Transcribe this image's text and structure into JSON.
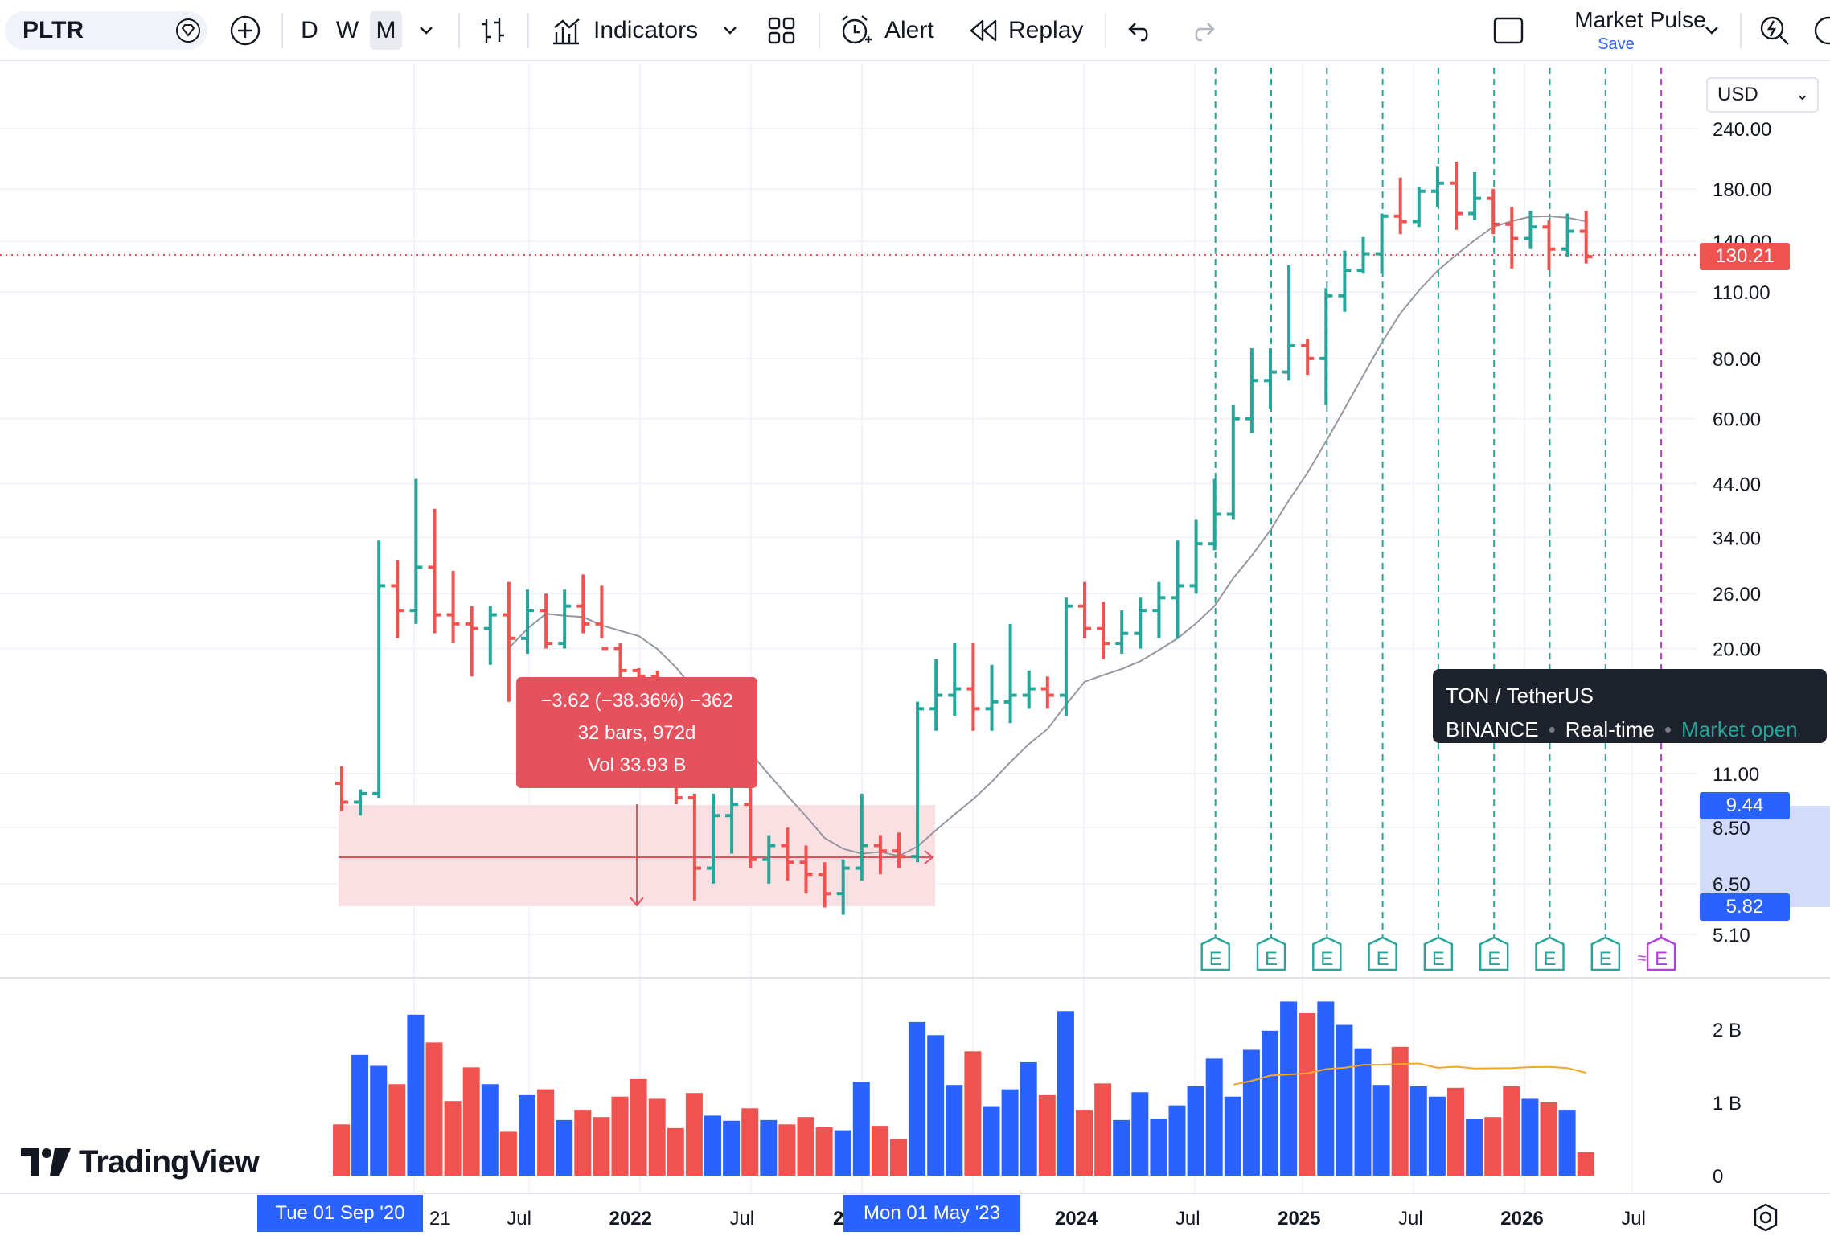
{
  "toolbar": {
    "symbol": "PLTR",
    "intervals": [
      "D",
      "W",
      "M"
    ],
    "active_interval": "M",
    "indicators_label": "Indicators",
    "alert_label": "Alert",
    "replay_label": "Replay",
    "layout_name": "Market Pulse",
    "save_label": "Save"
  },
  "currency": "USD",
  "price_axis": {
    "labels": [
      "240.00",
      "180.00",
      "140.00",
      "110.00",
      "80.00",
      "60.00",
      "44.00",
      "34.00",
      "26.00",
      "20.00",
      "11.00",
      "8.50",
      "6.50",
      "5.10"
    ],
    "current_price": "130.21",
    "range_high": "9.44",
    "range_low": "5.82"
  },
  "volume_axis": {
    "labels": [
      "2 B",
      "1 B",
      "0"
    ]
  },
  "time_axis": {
    "labels": [
      {
        "text": "Jul",
        "year": false
      },
      {
        "text": "2022",
        "year": true
      },
      {
        "text": "Jul",
        "year": false
      },
      {
        "text": "2024",
        "year": true
      },
      {
        "text": "Jul",
        "year": false
      },
      {
        "text": "2025",
        "year": true
      },
      {
        "text": "Jul",
        "year": false
      },
      {
        "text": "2026",
        "year": true
      },
      {
        "text": "Jul",
        "year": false
      }
    ],
    "partial_labels": [
      "21",
      "2"
    ],
    "range_start": "Tue 01 Sep '20",
    "range_end": "Mon 01 May '23"
  },
  "measure": {
    "line1": "−3.62 (−38.36%) −362",
    "line2": "32 bars, 972d",
    "line3": "Vol 33.93 B"
  },
  "tooltip": {
    "pair": "TON / TetherUS",
    "exchange": "BINANCE",
    "feed": "Real-time",
    "status": "Market open"
  },
  "earnings_marker": "E",
  "branding": "TradingView",
  "colors": {
    "up": "#26a69a",
    "down": "#ef5350",
    "vol_up": "#2962ff",
    "vol_down": "#ef5350",
    "upcoming": "#b43ce6"
  },
  "chart_data": {
    "type": "ohlc",
    "scale": "log",
    "interval": "monthly",
    "start_date": "2020-09",
    "ylim": [
      5.1,
      240
    ],
    "moving_average": "grey line over price, orange line over volume",
    "ohlc": [
      [
        10.5,
        11.4,
        9.2,
        9.6
      ],
      [
        9.6,
        10.2,
        9.0,
        10.0
      ],
      [
        10.0,
        33.5,
        9.8,
        27.0
      ],
      [
        27.0,
        30.5,
        21.0,
        24.0
      ],
      [
        24.0,
        45.0,
        22.5,
        29.5
      ],
      [
        29.5,
        39.0,
        21.5,
        23.5
      ],
      [
        23.5,
        29.0,
        20.5,
        22.5
      ],
      [
        22.5,
        24.5,
        17.5,
        22.0
      ],
      [
        22.0,
        24.5,
        18.5,
        23.5
      ],
      [
        23.5,
        27.5,
        15.5,
        21.0
      ],
      [
        21.0,
        26.5,
        19.5,
        24.0
      ],
      [
        24.0,
        26.0,
        20.0,
        20.5
      ],
      [
        20.5,
        26.5,
        20.0,
        24.5
      ],
      [
        24.5,
        28.5,
        21.5,
        22.5
      ],
      [
        22.5,
        27.0,
        21.0,
        20.0
      ],
      [
        20.0,
        20.5,
        17.0,
        18.0
      ],
      [
        18.0,
        18.2,
        13.0,
        17.5
      ],
      [
        17.5,
        18.0,
        11.0,
        11.8
      ],
      [
        11.8,
        12.5,
        9.5,
        9.8
      ],
      [
        9.8,
        10.0,
        6.0,
        7.0
      ],
      [
        7.0,
        10.0,
        6.5,
        9.0
      ],
      [
        9.0,
        10.5,
        7.5,
        9.5
      ],
      [
        9.5,
        11.2,
        7.0,
        7.3
      ],
      [
        7.3,
        8.2,
        6.5,
        7.8
      ],
      [
        7.8,
        8.5,
        6.6,
        7.2
      ],
      [
        7.2,
        7.8,
        6.2,
        6.8
      ],
      [
        6.8,
        7.2,
        5.8,
        6.2
      ],
      [
        6.2,
        7.3,
        5.6,
        7.0
      ],
      [
        7.0,
        10.0,
        6.6,
        7.8
      ],
      [
        7.8,
        8.2,
        6.8,
        7.6
      ],
      [
        7.6,
        8.3,
        7.0,
        7.4
      ],
      [
        7.4,
        15.5,
        7.2,
        15.0
      ],
      [
        15.0,
        19.0,
        13.5,
        16.0
      ],
      [
        16.0,
        20.5,
        14.5,
        16.5
      ],
      [
        16.5,
        20.5,
        13.5,
        15.0
      ],
      [
        15.0,
        18.5,
        13.5,
        15.5
      ],
      [
        15.5,
        22.5,
        14.0,
        16.0
      ],
      [
        16.0,
        18.0,
        15.0,
        16.5
      ],
      [
        16.5,
        17.5,
        15.0,
        16.0
      ],
      [
        16.0,
        25.5,
        14.5,
        24.5
      ],
      [
        24.5,
        27.5,
        21.0,
        22.0
      ],
      [
        22.0,
        25.0,
        19.0,
        20.5
      ],
      [
        20.5,
        24.0,
        19.5,
        21.5
      ],
      [
        21.5,
        25.5,
        20.0,
        24.0
      ],
      [
        24.0,
        27.5,
        21.0,
        25.5
      ],
      [
        25.5,
        33.5,
        21.0,
        27.0
      ],
      [
        27.0,
        37.0,
        26.0,
        33.0
      ],
      [
        33.0,
        45.0,
        32.0,
        38.0
      ],
      [
        38.0,
        64.0,
        37.0,
        60.0
      ],
      [
        60.0,
        84.0,
        56.0,
        72.0
      ],
      [
        72.0,
        84.0,
        63.0,
        75.0
      ],
      [
        75.0,
        125.0,
        72.0,
        85.0
      ],
      [
        85.0,
        88.0,
        74.0,
        80.0
      ],
      [
        80.0,
        112.0,
        64.0,
        108.0
      ],
      [
        108.0,
        134.0,
        100.0,
        122.0
      ],
      [
        122.0,
        143.0,
        120.0,
        132.0
      ],
      [
        132.0,
        160.0,
        120.0,
        158.0
      ],
      [
        158.0,
        190.0,
        145.0,
        154.0
      ],
      [
        154.0,
        182.0,
        150.0,
        178.0
      ],
      [
        178.0,
        200.0,
        165.0,
        185.0
      ],
      [
        185.0,
        205.0,
        148.0,
        160.0
      ],
      [
        160.0,
        195.0,
        155.0,
        172.0
      ],
      [
        172.0,
        180.0,
        145.0,
        152.0
      ],
      [
        152.0,
        165.0,
        123.0,
        142.0
      ],
      [
        142.0,
        162.0,
        135.0,
        150.0
      ],
      [
        150.0,
        155.0,
        122.0,
        135.0
      ],
      [
        135.0,
        160.0,
        130.0,
        147.0
      ],
      [
        147.0,
        162.0,
        126.0,
        130.21
      ]
    ],
    "volume_b": [
      0.7,
      1.65,
      1.5,
      1.25,
      2.2,
      1.82,
      1.02,
      1.48,
      1.25,
      0.6,
      1.1,
      1.18,
      0.76,
      0.9,
      0.8,
      1.08,
      1.32,
      1.05,
      0.65,
      1.13,
      0.82,
      0.75,
      0.92,
      0.76,
      0.7,
      0.8,
      0.66,
      0.62,
      1.28,
      0.68,
      0.5,
      2.1,
      1.92,
      1.24,
      1.7,
      0.95,
      1.18,
      1.55,
      1.1,
      2.25,
      0.9,
      1.26,
      0.76,
      1.14,
      0.78,
      0.96,
      1.22,
      1.6,
      1.08,
      1.72,
      1.98,
      2.38,
      2.22,
      2.38,
      2.06,
      1.74,
      1.24,
      1.76,
      1.22,
      1.08,
      1.2,
      0.77,
      0.8,
      1.22,
      1.05,
      1.0,
      0.9,
      0.32
    ],
    "earnings_months": [
      "2024-08",
      "2024-11",
      "2025-02",
      "2025-05",
      "2025-08",
      "2025-11",
      "2026-02",
      "2026-05"
    ],
    "upcoming_earnings": "2026-08",
    "measured_range": {
      "from": "2020-09",
      "to": "2023-05",
      "high": 9.44,
      "low": 5.82
    }
  }
}
